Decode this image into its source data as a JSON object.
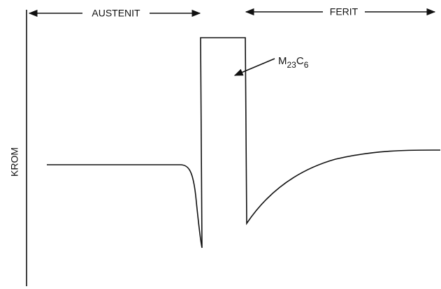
{
  "regions": {
    "left": "AUSTENIT",
    "right": "FERIT"
  },
  "axis_label": "KROM",
  "precipitate": {
    "base": "M",
    "sub1": "23",
    "mid": "C",
    "sub2": "6"
  }
}
